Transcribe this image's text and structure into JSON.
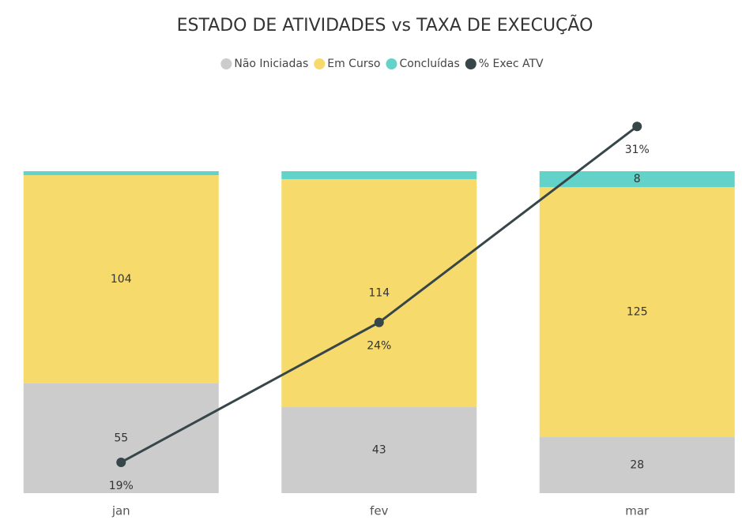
{
  "chart_data": {
    "type": "bar",
    "stacked": true,
    "title": "ESTADO DE ATIVIDADES vs TAXA DE EXECUÇÃO",
    "categories": [
      "jan",
      "fev",
      "mar"
    ],
    "series": [
      {
        "name": "Não Iniciadas",
        "color": "#cccccc",
        "values": [
          55,
          43,
          28
        ]
      },
      {
        "name": "Em Curso",
        "color": "#f6db6c",
        "values": [
          104,
          114,
          125
        ]
      },
      {
        "name": "Concluídas",
        "color": "#63d3c9",
        "values": [
          2,
          4,
          8
        ]
      },
      {
        "name": "% Exec ATV",
        "type": "line",
        "axis": "y2",
        "color": "#374649",
        "values": [
          19,
          24,
          31
        ],
        "value_labels": [
          "19%",
          "24%",
          "31%"
        ]
      }
    ],
    "ylim": [
      0,
      161
    ],
    "y2lim": [
      17.9,
      29.4
    ],
    "legend": "top"
  }
}
